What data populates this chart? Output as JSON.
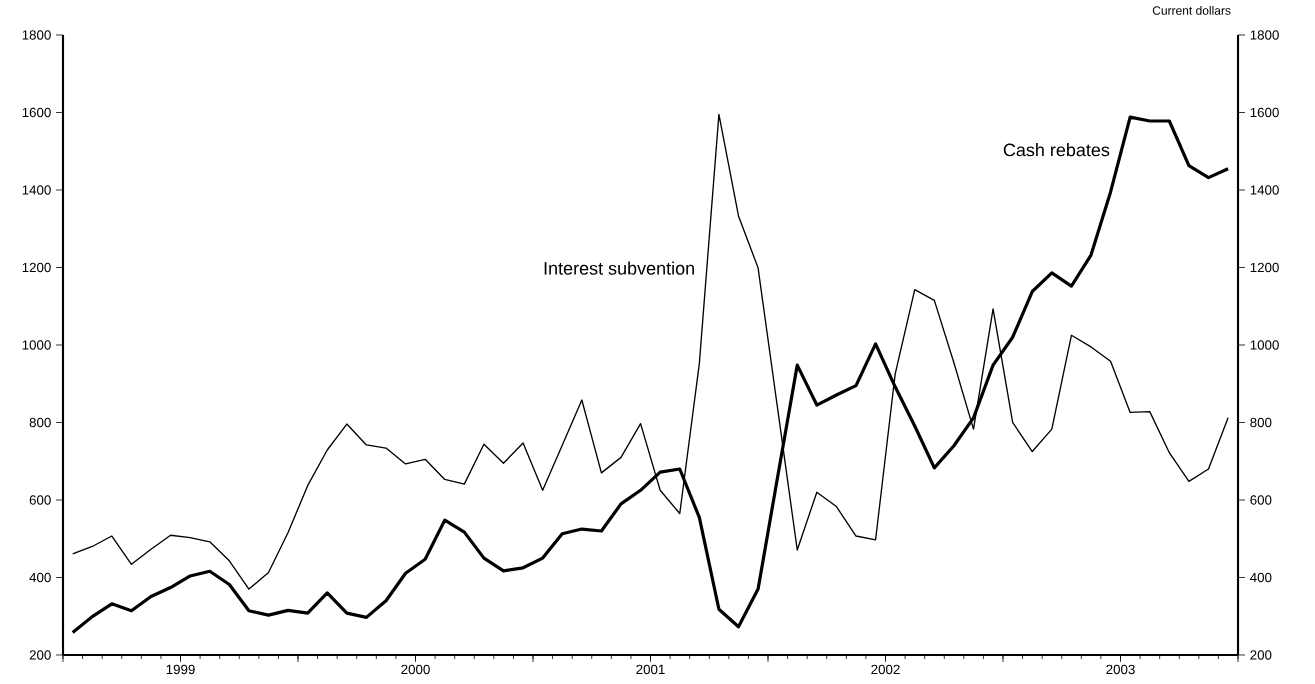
{
  "chart_data": {
    "type": "line",
    "annotations": [
      "Current dollars"
    ],
    "x": [
      "1999-01-16",
      "1999-02-16",
      "1999-03-16",
      "1999-04-16",
      "1999-05-16",
      "1999-06-16",
      "1999-07-16",
      "1999-08-16",
      "1999-09-16",
      "1999-10-16",
      "1999-11-16",
      "1999-12-16",
      "2000-01-16",
      "2000-02-16",
      "2000-03-16",
      "2000-04-16",
      "2000-05-16",
      "2000-06-16",
      "2000-07-16",
      "2000-08-16",
      "2000-09-16",
      "2000-10-16",
      "2000-11-16",
      "2000-12-16",
      "2001-01-16",
      "2001-02-16",
      "2001-03-16",
      "2001-04-16",
      "2001-05-16",
      "2001-06-16",
      "2001-07-16",
      "2001-08-16",
      "2001-09-16",
      "2001-10-16",
      "2001-11-16",
      "2001-12-16",
      "2002-01-16",
      "2002-02-16",
      "2002-03-16",
      "2002-04-16",
      "2002-05-16",
      "2002-06-16",
      "2002-07-16",
      "2002-08-16",
      "2002-09-16",
      "2002-10-16",
      "2002-11-16",
      "2002-12-16",
      "2003-01-16",
      "2003-02-16",
      "2003-03-16",
      "2003-04-16",
      "2003-05-16",
      "2003-06-16",
      "2003-07-16",
      "2003-08-16",
      "2003-09-16",
      "2003-10-16",
      "2003-11-16",
      "2003-12-16"
    ],
    "series": [
      {
        "name": "Interest subvention",
        "color": "#000000",
        "values": [
          461,
          480,
          507,
          434,
          473,
          509,
          503,
          492,
          443,
          370,
          413,
          516,
          637,
          729,
          796,
          742,
          734,
          693,
          705,
          653,
          641,
          744,
          695,
          747,
          625,
          741,
          858,
          670,
          710,
          797,
          625,
          565,
          952,
          1595,
          1333,
          1199,
          835,
          471,
          620,
          583,
          507,
          497,
          925,
          1143,
          1115,
          954,
          783,
          1093,
          800,
          725,
          783,
          1025,
          995,
          958,
          826,
          828,
          722,
          648,
          680,
          812
        ]
      },
      {
        "name": "Cash rebates",
        "color": "#000000",
        "values": [
          258,
          299,
          332,
          314,
          351,
          374,
          404,
          416,
          382,
          314,
          303,
          315,
          308,
          360,
          308,
          297,
          340,
          411,
          447,
          548,
          517,
          450,
          417,
          425,
          450,
          513,
          525,
          520,
          590,
          625,
          672,
          680,
          555,
          318,
          273,
          370,
          660,
          948,
          845,
          871,
          895,
          1003,
          892,
          791,
          683,
          740,
          812,
          948,
          1020,
          1138,
          1186,
          1152,
          1232,
          1395,
          1588,
          1578,
          1578,
          1463,
          1432,
          1455
        ]
      }
    ],
    "xlim": [
      "1999-01-01",
      "2004-01-01"
    ],
    "xticks": [
      {
        "value": "1999-01-01",
        "label": null
      },
      {
        "value": "1999-07-01",
        "label": "1999"
      },
      {
        "value": "2000-01-01",
        "label": null
      },
      {
        "value": "2000-07-01",
        "label": "2000"
      },
      {
        "value": "2001-01-01",
        "label": null
      },
      {
        "value": "2001-07-01",
        "label": "2001"
      },
      {
        "value": "2002-01-01",
        "label": null
      },
      {
        "value": "2002-07-01",
        "label": "2002"
      },
      {
        "value": "2003-01-01",
        "label": null
      },
      {
        "value": "2003-07-01",
        "label": "2003"
      },
      {
        "value": "2004-01-01",
        "label": null
      }
    ],
    "ylim": [
      200,
      1800
    ],
    "yticks": [
      200,
      400,
      600,
      800,
      1000,
      1200,
      1400,
      1600,
      1800
    ],
    "y2lim": [
      200,
      1800
    ],
    "y2ticks": [
      200,
      400,
      600,
      800,
      1000,
      1200,
      1400,
      1600,
      1800
    ],
    "grid": false,
    "legend": false,
    "marker": "none",
    "line_style": "solid"
  }
}
